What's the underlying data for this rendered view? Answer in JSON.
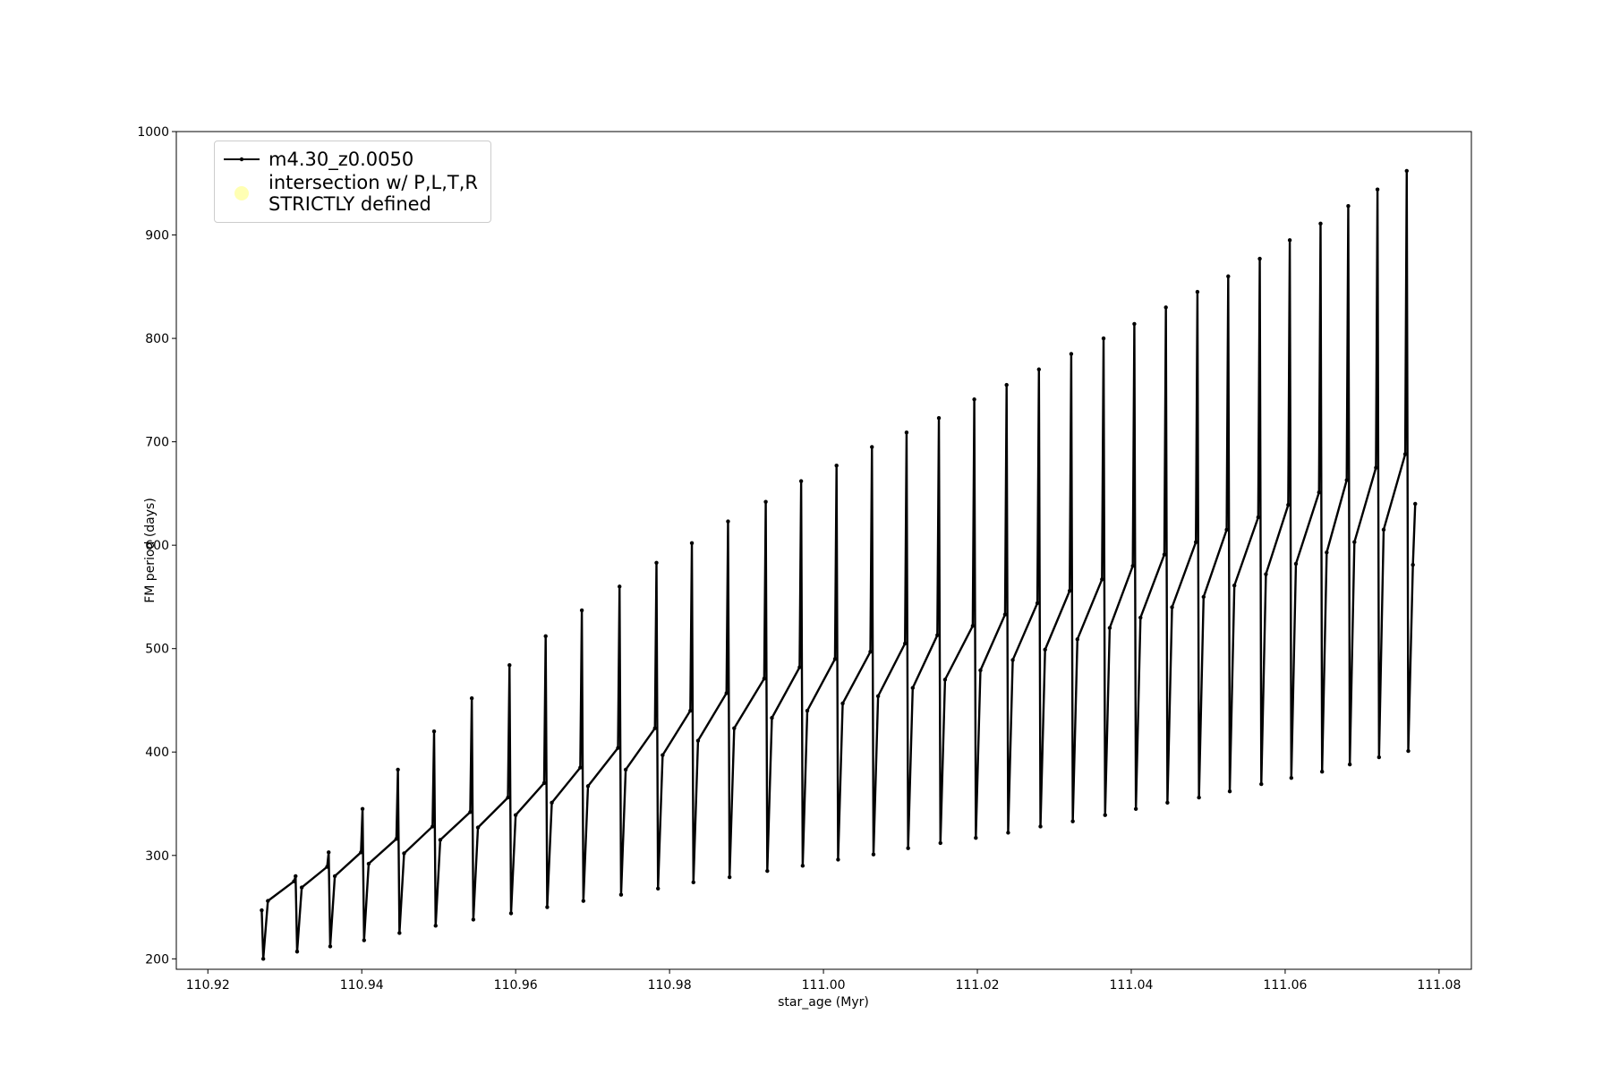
{
  "chart_data": {
    "type": "line",
    "xlabel": "star_age (Myr)",
    "ylabel": "FM period (days)",
    "xlim": [
      110.9159,
      111.0842
    ],
    "ylim": [
      189.9,
      1000
    ],
    "xticks": [
      110.92,
      110.94,
      110.96,
      110.98,
      {
        "value": 111,
        "label": "111.00"
      },
      111.02,
      111.04,
      111.06,
      111.08
    ],
    "yticks": [
      200,
      300,
      400,
      500,
      600,
      700,
      800,
      900,
      1000
    ],
    "legend": "upper left",
    "series": [
      {
        "name": "m4.30_z0.0050",
        "color": "#000000",
        "marker": "dot",
        "x": [
          110.927,
          110.9272,
          110.9278,
          110.9312,
          110.9314,
          110.9316,
          110.9322,
          110.9355,
          110.9357,
          110.9359,
          110.9365,
          110.9399,
          110.9401,
          110.9403,
          110.9409,
          110.9445,
          110.9447,
          110.9449,
          110.9455,
          110.9492,
          110.9494,
          110.9496,
          110.9502,
          110.9541,
          110.9543,
          110.9545,
          110.9551,
          110.959,
          110.9592,
          110.9594,
          110.96,
          110.9637,
          110.9639,
          110.9641,
          110.9647,
          110.9684,
          110.9686,
          110.9688,
          110.9694,
          110.9733,
          110.9735,
          110.9737,
          110.9743,
          110.9781,
          110.9783,
          110.9785,
          110.9791,
          110.9827,
          110.9829,
          110.9831,
          110.9837,
          110.9874,
          110.9876,
          110.9878,
          110.9884,
          110.9923,
          110.9925,
          110.9927,
          110.9933,
          110.9969,
          110.9971,
          110.9973,
          110.9979,
          111.0015,
          111.0017,
          111.0019,
          111.0025,
          111.0061,
          111.0063,
          111.0065,
          111.0071,
          111.0106,
          111.0108,
          111.011,
          111.0116,
          111.0148,
          111.015,
          111.0152,
          111.0158,
          111.0194,
          111.0196,
          111.0198,
          111.0204,
          111.0236,
          111.0238,
          111.024,
          111.0246,
          111.0278,
          111.028,
          111.0282,
          111.0288,
          111.032,
          111.0322,
          111.0324,
          111.033,
          111.0362,
          111.0364,
          111.0366,
          111.0372,
          111.0402,
          111.0404,
          111.0406,
          111.0412,
          111.0443,
          111.0445,
          111.0447,
          111.0453,
          111.0484,
          111.0486,
          111.0488,
          111.0494,
          111.0524,
          111.0526,
          111.0528,
          111.0534,
          111.0565,
          111.0567,
          111.0569,
          111.0575,
          111.0604,
          111.0606,
          111.0608,
          111.0614,
          111.0644,
          111.0646,
          111.0648,
          111.0654,
          111.068,
          111.0682,
          111.0684,
          111.069,
          111.0718,
          111.072,
          111.0722,
          111.0728,
          111.0756,
          111.0758,
          111.076,
          111.0766,
          111.0769
        ],
        "values": [
          247,
          200,
          256,
          275,
          280,
          207,
          269,
          289,
          303,
          212,
          280,
          303,
          345,
          218,
          292,
          316,
          383,
          225,
          302,
          328,
          420,
          232,
          315,
          342,
          452,
          238,
          327,
          356,
          484,
          244,
          339,
          370,
          512,
          250,
          351,
          385,
          537,
          256,
          367,
          404,
          560,
          262,
          383,
          423,
          583,
          268,
          397,
          440,
          602,
          274,
          411,
          457,
          623,
          279,
          423,
          471,
          642,
          285,
          433,
          482,
          662,
          290,
          440,
          490,
          677,
          296,
          447,
          497,
          695,
          301,
          454,
          505,
          709,
          307,
          462,
          513,
          723,
          312,
          470,
          522,
          741,
          317,
          479,
          533,
          755,
          322,
          489,
          544,
          770,
          328,
          499,
          556,
          785,
          333,
          509,
          567,
          800,
          339,
          520,
          580,
          814,
          345,
          530,
          591,
          830,
          351,
          540,
          603,
          845,
          356,
          550,
          615,
          860,
          362,
          561,
          627,
          877,
          369,
          572,
          639,
          895,
          375,
          582,
          651,
          911,
          381,
          593,
          663,
          928,
          388,
          603,
          675,
          944,
          395,
          615,
          688,
          962,
          401,
          581,
          640
        ]
      },
      {
        "name": "intersection w/ P,L,T,R\nSTRICTLY defined",
        "color": "#ffffb3",
        "marker": "circle",
        "x": [],
        "values": []
      }
    ]
  }
}
